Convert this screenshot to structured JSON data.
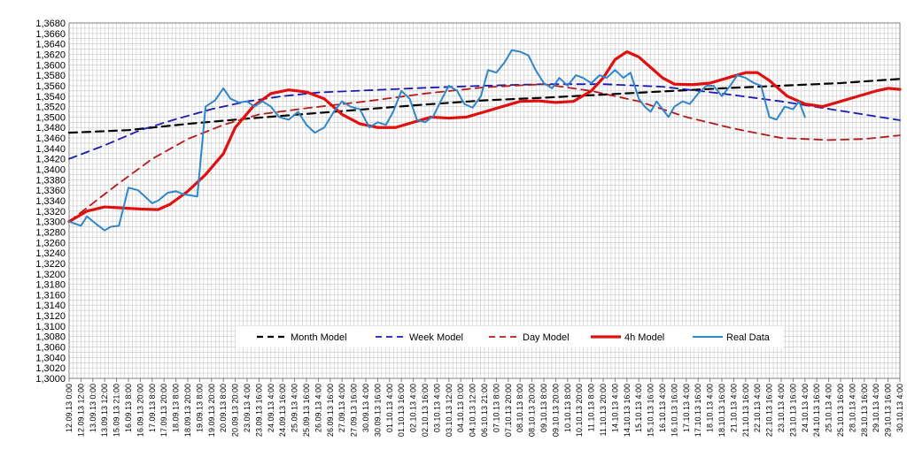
{
  "chart_data": {
    "type": "line",
    "title": "",
    "xlabel": "",
    "ylabel": "",
    "ylim": [
      1.3,
      1.368
    ],
    "y_tick_step": 0.002,
    "y_tick_labels": [
      "1,3000",
      "1,3020",
      "1,3040",
      "1,3060",
      "1,3080",
      "1,3100",
      "1,3120",
      "1,3140",
      "1,3160",
      "1,3180",
      "1,3200",
      "1,3220",
      "1,3240",
      "1,3260",
      "1,3280",
      "1,3300",
      "1,3320",
      "1,3340",
      "1,3360",
      "1,3380",
      "1,3400",
      "1,3420",
      "1,3440",
      "1,3460",
      "1,3480",
      "1,3500",
      "1,3520",
      "1,3540",
      "1,3560",
      "1,3580",
      "1,3600",
      "1,3620",
      "1,3640",
      "1,3660",
      "1,3680"
    ],
    "x_tick_labels": [
      "12.09.13 0:00",
      "12.09.13 12:00",
      "13.09.13 0:00",
      "13.09.13 12:00",
      "15.09.13 21:00",
      "16.09.13 8:00",
      "16.09.13 20:00",
      "17.09.13 8:00",
      "17.09.13 20:00",
      "18.09.13 8:00",
      "18.09.13 20:00",
      "19.09.13 8:00",
      "19.09.13 20:00",
      "20.09.13 8:00",
      "20.09.13 20:00",
      "23.09.13 4:00",
      "23.09.13 16:00",
      "24.09.13 4:00",
      "24.09.13 16:00",
      "25.09.13 4:00",
      "25.09.13 16:00",
      "26.09.13 4:00",
      "26.09.13 16:00",
      "27.09.13 4:00",
      "27.09.13 16:00",
      "30.09.13 4:00",
      "30.09.13 16:00",
      "01.10.13 4:00",
      "01.10.13 16:00",
      "02.10.13 4:00",
      "02.10.13 16:00",
      "03.10.13 4:00",
      "03.10.13 12:00",
      "04.10.13 0:00",
      "04.10.13 12:00",
      "06.10.13 21:00",
      "07.10.13 8:00",
      "07.10.13 20:00",
      "08.10.13 8:00",
      "08.10.13 20:00",
      "09.10.13 8:00",
      "09.10.13 20:00",
      "10.10.13 8:00",
      "10.10.13 20:00",
      "11.10.13 8:00",
      "11.10.13 20:00",
      "14.10.13 4:00",
      "14.10.13 16:00",
      "15.10.13 4:00",
      "15.10.13 16:00",
      "16.10.13 4:00",
      "16.10.13 16:00",
      "17.10.13 4:00",
      "17.10.13 16:00",
      "18.10.13 4:00",
      "18.10.13 16:00",
      "21.10.13 4:00",
      "21.10.13 16:00",
      "22.10.13 4:00",
      "22.10.13 16:00",
      "23.10.13 4:00",
      "23.10.13 16:00",
      "24.10.13 4:00",
      "24.10.13 16:00",
      "25.10.13 4:00",
      "25.10.13 16:00",
      "28.10.13 4:00",
      "28.10.13 16:00",
      "29.10.13 4:00",
      "29.10.13 16:00",
      "30.10.13 4:00"
    ],
    "grid": true,
    "legend_position": "bottom-inside",
    "series": [
      {
        "name": "Month Model",
        "color": "#000000",
        "dash": "dash",
        "width": 2.2,
        "points": [
          [
            0,
            1.347
          ],
          [
            5,
            1.3475
          ],
          [
            10,
            1.3487
          ],
          [
            15,
            1.3497
          ],
          [
            20,
            1.3506
          ],
          [
            25,
            1.3515
          ],
          [
            30,
            1.3524
          ],
          [
            35,
            1.3532
          ],
          [
            40,
            1.3537
          ],
          [
            45,
            1.3543
          ],
          [
            50,
            1.3549
          ],
          [
            55,
            1.3555
          ],
          [
            60,
            1.356
          ],
          [
            65,
            1.3565
          ],
          [
            70,
            1.3573
          ]
        ]
      },
      {
        "name": "Week Model",
        "color": "#1a1ab3",
        "dash": "dash",
        "width": 1.8,
        "points": [
          [
            0,
            1.342
          ],
          [
            3,
            1.3446
          ],
          [
            6,
            1.3475
          ],
          [
            9,
            1.3496
          ],
          [
            12,
            1.3515
          ],
          [
            15,
            1.353
          ],
          [
            18,
            1.354
          ],
          [
            21,
            1.3547
          ],
          [
            25,
            1.3551
          ],
          [
            30,
            1.3556
          ],
          [
            35,
            1.356
          ],
          [
            40,
            1.3563
          ],
          [
            45,
            1.3563
          ],
          [
            50,
            1.3558
          ],
          [
            55,
            1.3545
          ],
          [
            60,
            1.353
          ],
          [
            65,
            1.3512
          ],
          [
            70,
            1.3494
          ]
        ]
      },
      {
        "name": "Day Model",
        "color": "#b31a1a",
        "dash": "dash",
        "width": 1.8,
        "points": [
          [
            0,
            1.33
          ],
          [
            4,
            1.337
          ],
          [
            7,
            1.342
          ],
          [
            10,
            1.3458
          ],
          [
            13,
            1.3485
          ],
          [
            16,
            1.3505
          ],
          [
            20,
            1.3517
          ],
          [
            25,
            1.353
          ],
          [
            30,
            1.3545
          ],
          [
            35,
            1.3557
          ],
          [
            40,
            1.3563
          ],
          [
            44,
            1.355
          ],
          [
            48,
            1.353
          ],
          [
            52,
            1.35
          ],
          [
            56,
            1.3478
          ],
          [
            60,
            1.346
          ],
          [
            64,
            1.3456
          ],
          [
            67,
            1.3458
          ],
          [
            70,
            1.3465
          ]
        ]
      },
      {
        "name": "4h Model",
        "color": "#e01010",
        "dash": "solid",
        "width": 3.2,
        "points": [
          [
            0,
            1.33
          ],
          [
            1.5,
            1.332
          ],
          [
            3,
            1.3328
          ],
          [
            4.5,
            1.3326
          ],
          [
            6,
            1.3324
          ],
          [
            7.5,
            1.3323
          ],
          [
            8.5,
            1.3333
          ],
          [
            10,
            1.3358
          ],
          [
            11.5,
            1.339
          ],
          [
            13,
            1.343
          ],
          [
            14,
            1.348
          ],
          [
            15.5,
            1.352
          ],
          [
            17,
            1.3545
          ],
          [
            18.5,
            1.3552
          ],
          [
            20,
            1.3548
          ],
          [
            21.5,
            1.3535
          ],
          [
            23,
            1.3505
          ],
          [
            24.5,
            1.3487
          ],
          [
            26,
            1.348
          ],
          [
            27.5,
            1.348
          ],
          [
            29,
            1.349
          ],
          [
            30.5,
            1.35
          ],
          [
            32,
            1.3498
          ],
          [
            33.5,
            1.35
          ],
          [
            35,
            1.351
          ],
          [
            36.5,
            1.352
          ],
          [
            38,
            1.353
          ],
          [
            39.5,
            1.3531
          ],
          [
            41,
            1.3528
          ],
          [
            42.5,
            1.353
          ],
          [
            44,
            1.355
          ],
          [
            45,
            1.3575
          ],
          [
            46,
            1.361
          ],
          [
            47,
            1.3625
          ],
          [
            48,
            1.3615
          ],
          [
            49,
            1.3595
          ],
          [
            50,
            1.3575
          ],
          [
            51,
            1.3563
          ],
          [
            52.5,
            1.3562
          ],
          [
            54,
            1.3565
          ],
          [
            55.5,
            1.3575
          ],
          [
            57,
            1.3585
          ],
          [
            58,
            1.3585
          ],
          [
            59,
            1.357
          ],
          [
            60.5,
            1.354
          ],
          [
            62,
            1.3525
          ],
          [
            63.5,
            1.352
          ],
          [
            65,
            1.353
          ],
          [
            66.5,
            1.354
          ],
          [
            68,
            1.355
          ],
          [
            69,
            1.3555
          ],
          [
            70,
            1.3553
          ]
        ]
      },
      {
        "name": "Real Data",
        "color": "#2f86c8",
        "dash": "solid",
        "width": 2.0,
        "points": [
          [
            0,
            1.33
          ],
          [
            1,
            1.3292
          ],
          [
            1.5,
            1.331
          ],
          [
            2.3,
            1.3295
          ],
          [
            3,
            1.3283
          ],
          [
            3.5,
            1.329
          ],
          [
            4.2,
            1.3292
          ],
          [
            5,
            1.3365
          ],
          [
            5.8,
            1.336
          ],
          [
            6.3,
            1.335
          ],
          [
            7,
            1.3335
          ],
          [
            7.5,
            1.334
          ],
          [
            8.3,
            1.3355
          ],
          [
            9,
            1.3358
          ],
          [
            9.7,
            1.3352
          ],
          [
            10.3,
            1.335
          ],
          [
            10.8,
            1.3348
          ],
          [
            11.5,
            1.352
          ],
          [
            12.3,
            1.3532
          ],
          [
            13,
            1.3555
          ],
          [
            13.6,
            1.3535
          ],
          [
            14.3,
            1.3528
          ],
          [
            15,
            1.353
          ],
          [
            15.6,
            1.352
          ],
          [
            16.3,
            1.353
          ],
          [
            17,
            1.352
          ],
          [
            17.7,
            1.35
          ],
          [
            18.5,
            1.3495
          ],
          [
            19.3,
            1.351
          ],
          [
            20,
            1.3485
          ],
          [
            20.7,
            1.347
          ],
          [
            21.5,
            1.348
          ],
          [
            22.3,
            1.351
          ],
          [
            23,
            1.353
          ],
          [
            23.7,
            1.352
          ],
          [
            24.5,
            1.3515
          ],
          [
            25.3,
            1.348
          ],
          [
            26,
            1.349
          ],
          [
            26.7,
            1.3485
          ],
          [
            27.3,
            1.351
          ],
          [
            28,
            1.355
          ],
          [
            28.7,
            1.3535
          ],
          [
            29.3,
            1.3495
          ],
          [
            30,
            1.349
          ],
          [
            30.7,
            1.3502
          ],
          [
            31.3,
            1.353
          ],
          [
            32,
            1.356
          ],
          [
            32.7,
            1.355
          ],
          [
            33.3,
            1.3525
          ],
          [
            34,
            1.3518
          ],
          [
            34.7,
            1.354
          ],
          [
            35.3,
            1.359
          ],
          [
            36,
            1.3585
          ],
          [
            36.7,
            1.3605
          ],
          [
            37.3,
            1.3628
          ],
          [
            38,
            1.3625
          ],
          [
            38.7,
            1.3618
          ],
          [
            39.3,
            1.359
          ],
          [
            40,
            1.3565
          ],
          [
            40.7,
            1.3555
          ],
          [
            41.3,
            1.3575
          ],
          [
            42,
            1.356
          ],
          [
            42.7,
            1.358
          ],
          [
            43.3,
            1.3575
          ],
          [
            44,
            1.3565
          ],
          [
            44.7,
            1.358
          ],
          [
            45.3,
            1.3575
          ],
          [
            46,
            1.359
          ],
          [
            46.7,
            1.3575
          ],
          [
            47.3,
            1.3585
          ],
          [
            48,
            1.3535
          ],
          [
            48.5,
            1.352
          ],
          [
            49,
            1.351
          ],
          [
            49.5,
            1.353
          ],
          [
            50,
            1.3515
          ],
          [
            50.5,
            1.35
          ],
          [
            51,
            1.352
          ],
          [
            51.7,
            1.353
          ],
          [
            52.3,
            1.3525
          ],
          [
            53,
            1.3545
          ],
          [
            53.7,
            1.356
          ],
          [
            54.3,
            1.356
          ],
          [
            55,
            1.354
          ],
          [
            55.7,
            1.356
          ],
          [
            56.3,
            1.358
          ],
          [
            57,
            1.3575
          ],
          [
            57.7,
            1.3565
          ],
          [
            58.3,
            1.356
          ],
          [
            59,
            1.35
          ],
          [
            59.6,
            1.3495
          ],
          [
            60.3,
            1.352
          ],
          [
            61,
            1.3515
          ],
          [
            61.5,
            1.353
          ],
          [
            62,
            1.35
          ]
        ]
      }
    ]
  }
}
